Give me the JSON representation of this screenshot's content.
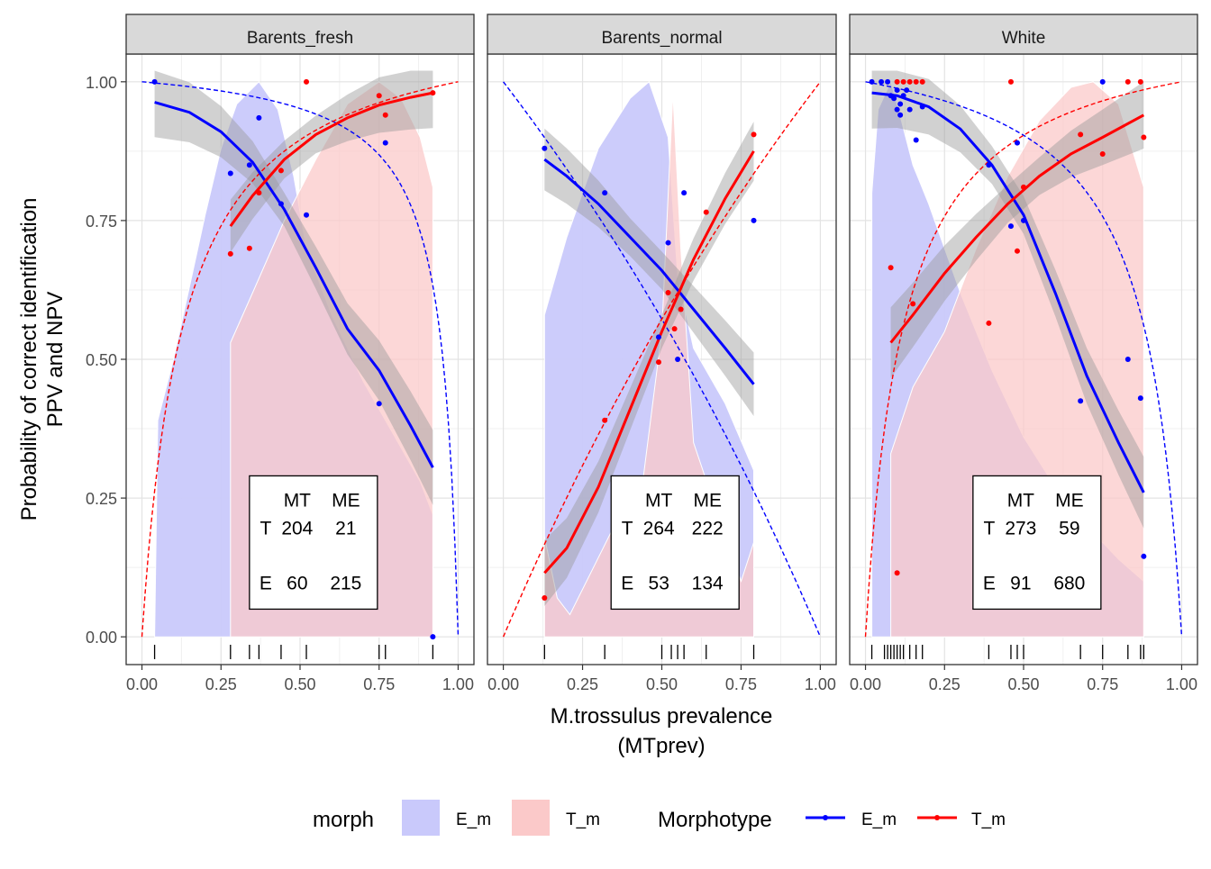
{
  "chart_data": {
    "type": "scatter",
    "ylabel_lines": [
      "Probability of correct identification",
      "PPV and NPV"
    ],
    "xlabel_lines": [
      "M.trossulus prevalence",
      "(MTprev)"
    ],
    "xlim": [
      -0.05,
      1.05
    ],
    "ylim": [
      -0.05,
      1.05
    ],
    "x_ticks": [
      "0.00",
      "0.25",
      "0.50",
      "0.75",
      "1.00"
    ],
    "y_ticks": [
      "0.00",
      "0.25",
      "0.50",
      "0.75",
      "1.00"
    ],
    "grid": true,
    "legend_position": "bottom",
    "legends": [
      {
        "title": "morph",
        "kind": "fill",
        "keys": [
          {
            "label": "E_m",
            "color": "#c9c9fb"
          },
          {
            "label": "T_m",
            "color": "#fbc9c9"
          }
        ]
      },
      {
        "title": "Morphotype",
        "kind": "line",
        "keys": [
          {
            "label": "E_m",
            "color": "#0000ff"
          },
          {
            "label": "T_m",
            "color": "#ff0000"
          }
        ]
      }
    ],
    "colors": {
      "E_m": "#0000ff",
      "T_m": "#ff0000",
      "E_fill": "#c9c9fb",
      "T_fill": "#fbc9c9",
      "overlap_fill": "#d7a5cc"
    },
    "panels": [
      {
        "title": "Barents_fresh",
        "table": {
          "cols": [
            "MT",
            "ME"
          ],
          "rows": [
            {
              "label": "T",
              "values": [
                "204",
                "21"
              ]
            },
            {
              "label": "E",
              "values": [
                "60",
                "215"
              ]
            }
          ]
        },
        "rug": [
          0.04,
          0.28,
          0.34,
          0.37,
          0.44,
          0.52,
          0.75,
          0.77,
          0.92
        ],
        "points_E": [
          [
            0.04,
            1.0
          ],
          [
            0.28,
            0.835
          ],
          [
            0.34,
            0.85
          ],
          [
            0.37,
            0.935
          ],
          [
            0.44,
            0.78
          ],
          [
            0.52,
            0.76
          ],
          [
            0.75,
            0.42
          ],
          [
            0.77,
            0.89
          ],
          [
            0.92,
            0.0
          ]
        ],
        "points_T": [
          [
            0.28,
            0.69
          ],
          [
            0.34,
            0.7
          ],
          [
            0.37,
            0.8
          ],
          [
            0.44,
            0.84
          ],
          [
            0.52,
            1.0
          ],
          [
            0.75,
            0.975
          ],
          [
            0.77,
            0.94
          ],
          [
            0.92,
            0.98
          ]
        ],
        "fit_E": [
          [
            0.04,
            0.963
          ],
          [
            0.15,
            0.945
          ],
          [
            0.25,
            0.91
          ],
          [
            0.35,
            0.855
          ],
          [
            0.45,
            0.77
          ],
          [
            0.55,
            0.665
          ],
          [
            0.65,
            0.555
          ],
          [
            0.75,
            0.48
          ],
          [
            0.85,
            0.38
          ],
          [
            0.92,
            0.305
          ]
        ],
        "fit_T": [
          [
            0.28,
            0.74
          ],
          [
            0.35,
            0.795
          ],
          [
            0.45,
            0.86
          ],
          [
            0.55,
            0.905
          ],
          [
            0.65,
            0.935
          ],
          [
            0.75,
            0.958
          ],
          [
            0.85,
            0.972
          ],
          [
            0.92,
            0.98
          ]
        ],
        "density_E": [
          [
            0.04,
            0.0
          ],
          [
            0.05,
            0.39
          ],
          [
            0.1,
            0.5
          ],
          [
            0.15,
            0.63
          ],
          [
            0.2,
            0.76
          ],
          [
            0.25,
            0.88
          ],
          [
            0.3,
            0.96
          ],
          [
            0.37,
            1.0
          ],
          [
            0.43,
            0.95
          ],
          [
            0.48,
            0.83
          ],
          [
            0.52,
            0.7
          ],
          [
            0.6,
            0.58
          ],
          [
            0.7,
            0.46
          ],
          [
            0.8,
            0.36
          ],
          [
            0.88,
            0.28
          ],
          [
            0.92,
            0.22
          ],
          [
            0.92,
            0.0
          ]
        ],
        "density_T": [
          [
            0.28,
            0.0
          ],
          [
            0.28,
            0.53
          ],
          [
            0.35,
            0.62
          ],
          [
            0.45,
            0.75
          ],
          [
            0.55,
            0.86
          ],
          [
            0.65,
            0.96
          ],
          [
            0.75,
            1.0
          ],
          [
            0.82,
            0.97
          ],
          [
            0.88,
            0.9
          ],
          [
            0.92,
            0.81
          ],
          [
            0.92,
            0.0
          ]
        ]
      },
      {
        "title": "Barents_normal",
        "table": {
          "cols": [
            "MT",
            "ME"
          ],
          "rows": [
            {
              "label": "T",
              "values": [
                "264",
                "222"
              ]
            },
            {
              "label": "E",
              "values": [
                "53",
                "134"
              ]
            }
          ]
        },
        "rug": [
          0.13,
          0.32,
          0.5,
          0.53,
          0.55,
          0.57,
          0.64,
          0.79
        ],
        "points_E": [
          [
            0.13,
            0.88
          ],
          [
            0.32,
            0.8
          ],
          [
            0.49,
            0.54
          ],
          [
            0.52,
            0.71
          ],
          [
            0.55,
            0.5
          ],
          [
            0.57,
            0.8
          ],
          [
            0.79,
            0.75
          ]
        ],
        "points_T": [
          [
            0.13,
            0.07
          ],
          [
            0.32,
            0.39
          ],
          [
            0.49,
            0.495
          ],
          [
            0.52,
            0.62
          ],
          [
            0.54,
            0.555
          ],
          [
            0.56,
            0.59
          ],
          [
            0.64,
            0.765
          ],
          [
            0.79,
            0.905
          ]
        ],
        "fit_E": [
          [
            0.13,
            0.86
          ],
          [
            0.2,
            0.83
          ],
          [
            0.3,
            0.78
          ],
          [
            0.4,
            0.72
          ],
          [
            0.5,
            0.66
          ],
          [
            0.6,
            0.59
          ],
          [
            0.7,
            0.52
          ],
          [
            0.79,
            0.455
          ]
        ],
        "fit_T": [
          [
            0.13,
            0.115
          ],
          [
            0.2,
            0.16
          ],
          [
            0.3,
            0.27
          ],
          [
            0.4,
            0.41
          ],
          [
            0.5,
            0.55
          ],
          [
            0.6,
            0.68
          ],
          [
            0.7,
            0.79
          ],
          [
            0.79,
            0.875
          ]
        ],
        "density_E": [
          [
            0.13,
            0.0
          ],
          [
            0.13,
            0.58
          ],
          [
            0.2,
            0.72
          ],
          [
            0.3,
            0.88
          ],
          [
            0.4,
            0.97
          ],
          [
            0.46,
            1.0
          ],
          [
            0.52,
            0.9
          ],
          [
            0.55,
            0.65
          ],
          [
            0.6,
            0.52
          ],
          [
            0.7,
            0.42
          ],
          [
            0.79,
            0.3
          ],
          [
            0.79,
            0.0
          ]
        ],
        "density_T": [
          [
            0.13,
            0.0
          ],
          [
            0.13,
            0.18
          ],
          [
            0.17,
            0.07
          ],
          [
            0.21,
            0.04
          ],
          [
            0.28,
            0.12
          ],
          [
            0.35,
            0.2
          ],
          [
            0.44,
            0.28
          ],
          [
            0.5,
            0.55
          ],
          [
            0.535,
            0.98
          ],
          [
            0.56,
            0.7
          ],
          [
            0.6,
            0.35
          ],
          [
            0.7,
            0.18
          ],
          [
            0.75,
            0.1
          ],
          [
            0.79,
            0.17
          ],
          [
            0.79,
            0.0
          ]
        ]
      },
      {
        "title": "White",
        "table": {
          "cols": [
            "MT",
            "ME"
          ],
          "rows": [
            {
              "label": "T",
              "values": [
                "273",
                "59"
              ]
            },
            {
              "label": "E",
              "values": [
                "91",
                "680"
              ]
            }
          ]
        },
        "rug": [
          0.02,
          0.06,
          0.07,
          0.08,
          0.09,
          0.1,
          0.11,
          0.12,
          0.14,
          0.16,
          0.18,
          0.39,
          0.46,
          0.48,
          0.5,
          0.68,
          0.75,
          0.83,
          0.87,
          0.88
        ],
        "points_E": [
          [
            0.02,
            1.0
          ],
          [
            0.05,
            1.0
          ],
          [
            0.07,
            1.0
          ],
          [
            0.08,
            0.975
          ],
          [
            0.09,
            0.97
          ],
          [
            0.1,
            0.985
          ],
          [
            0.11,
            0.96
          ],
          [
            0.12,
            0.975
          ],
          [
            0.13,
            0.985
          ],
          [
            0.1,
            0.95
          ],
          [
            0.11,
            0.94
          ],
          [
            0.14,
            0.95
          ],
          [
            0.16,
            0.895
          ],
          [
            0.18,
            0.955
          ],
          [
            0.39,
            0.85
          ],
          [
            0.46,
            0.74
          ],
          [
            0.48,
            0.89
          ],
          [
            0.5,
            0.75
          ],
          [
            0.68,
            0.425
          ],
          [
            0.75,
            1.0
          ],
          [
            0.83,
            0.5
          ],
          [
            0.87,
            0.43
          ],
          [
            0.88,
            0.145
          ]
        ],
        "points_T": [
          [
            0.08,
            0.665
          ],
          [
            0.1,
            0.115
          ],
          [
            0.1,
            1.0
          ],
          [
            0.12,
            1.0
          ],
          [
            0.14,
            1.0
          ],
          [
            0.16,
            1.0
          ],
          [
            0.18,
            1.0
          ],
          [
            0.15,
            0.6
          ],
          [
            0.39,
            0.565
          ],
          [
            0.46,
            1.0
          ],
          [
            0.48,
            0.695
          ],
          [
            0.5,
            0.81
          ],
          [
            0.68,
            0.905
          ],
          [
            0.75,
            0.87
          ],
          [
            0.83,
            1.0
          ],
          [
            0.87,
            1.0
          ],
          [
            0.88,
            0.9
          ]
        ],
        "fit_E": [
          [
            0.02,
            0.98
          ],
          [
            0.1,
            0.975
          ],
          [
            0.2,
            0.955
          ],
          [
            0.3,
            0.915
          ],
          [
            0.4,
            0.85
          ],
          [
            0.5,
            0.76
          ],
          [
            0.6,
            0.62
          ],
          [
            0.7,
            0.47
          ],
          [
            0.8,
            0.35
          ],
          [
            0.88,
            0.26
          ]
        ],
        "fit_T": [
          [
            0.08,
            0.53
          ],
          [
            0.15,
            0.58
          ],
          [
            0.25,
            0.655
          ],
          [
            0.35,
            0.72
          ],
          [
            0.45,
            0.78
          ],
          [
            0.55,
            0.83
          ],
          [
            0.65,
            0.87
          ],
          [
            0.75,
            0.9
          ],
          [
            0.88,
            0.94
          ]
        ],
        "density_E": [
          [
            0.02,
            0.0
          ],
          [
            0.02,
            0.8
          ],
          [
            0.04,
            0.95
          ],
          [
            0.08,
            1.0
          ],
          [
            0.1,
            0.96
          ],
          [
            0.15,
            0.85
          ],
          [
            0.2,
            0.78
          ],
          [
            0.3,
            0.62
          ],
          [
            0.4,
            0.48
          ],
          [
            0.5,
            0.36
          ],
          [
            0.6,
            0.27
          ],
          [
            0.7,
            0.2
          ],
          [
            0.8,
            0.14
          ],
          [
            0.88,
            0.1
          ],
          [
            0.88,
            0.0
          ]
        ],
        "density_T": [
          [
            0.08,
            0.0
          ],
          [
            0.08,
            0.33
          ],
          [
            0.15,
            0.45
          ],
          [
            0.25,
            0.55
          ],
          [
            0.35,
            0.7
          ],
          [
            0.45,
            0.83
          ],
          [
            0.55,
            0.93
          ],
          [
            0.65,
            0.99
          ],
          [
            0.72,
            1.0
          ],
          [
            0.8,
            0.96
          ],
          [
            0.88,
            0.81
          ],
          [
            0.88,
            0.0
          ]
        ]
      }
    ],
    "ppv_curves": [
      {
        "panel": 0,
        "series": "E_m",
        "sens": 0.95,
        "spec": 0.99
      },
      {
        "panel": 0,
        "series": "T_m",
        "sens": 0.77,
        "spec": 0.91
      },
      {
        "panel": 1,
        "series": "E_m",
        "sens": 0.38,
        "spec": 0.83
      },
      {
        "panel": 1,
        "series": "T_m",
        "sens": 0.83,
        "spec": 0.38
      },
      {
        "panel": 2,
        "series": "E_m",
        "sens": 0.92,
        "spec": 0.75
      },
      {
        "panel": 2,
        "series": "T_m",
        "sens": 0.75,
        "spec": 0.92
      }
    ]
  }
}
